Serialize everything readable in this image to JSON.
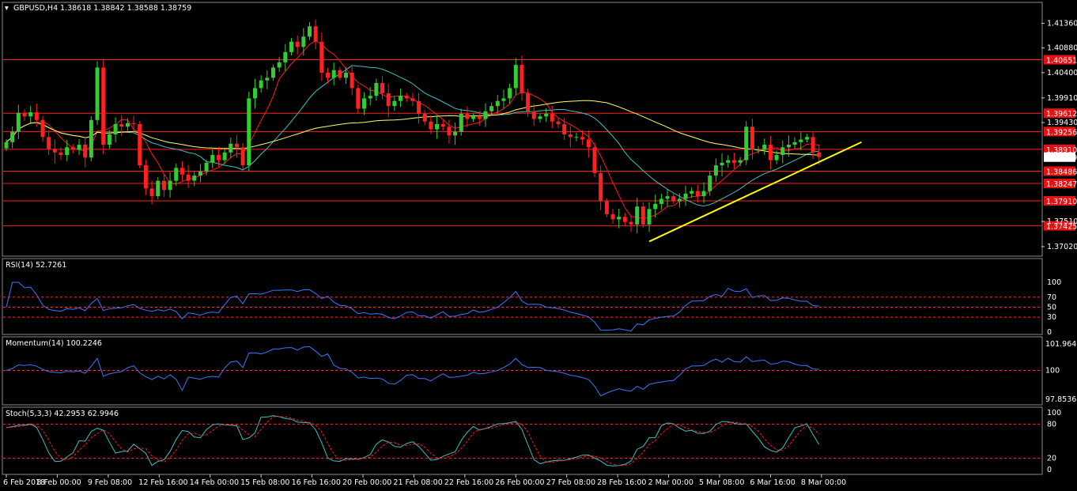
{
  "chart_data": {
    "type": "candlestick",
    "symbol": "GBPUSD,H4",
    "ohlc_label": "1.38618 1.38842 1.38588 1.38759",
    "price_axis": {
      "ylim": [
        1.3685,
        1.4175
      ],
      "ticks": [
        "1.41360",
        "1.40880",
        "1.40400",
        "1.39910",
        "1.39430",
        "1.37510",
        "1.37020"
      ]
    },
    "time_labels": [
      "6 Feb 2018",
      "8 Feb 00:00",
      "9 Feb 08:00",
      "12 Feb 16:00",
      "14 Feb 00:00",
      "15 Feb 08:00",
      "16 Feb 16:00",
      "20 Feb 00:00",
      "21 Feb 08:00",
      "22 Feb 16:00",
      "26 Feb 00:00",
      "27 Feb 08:00",
      "28 Feb 16:00",
      "2 Mar 00:00",
      "5 Mar 08:00",
      "6 Mar 16:00",
      "8 Mar 00:00"
    ],
    "closes": [
      1.3905,
      1.3925,
      1.3962,
      1.3955,
      1.3963,
      1.3948,
      1.3915,
      1.3892,
      1.3885,
      1.388,
      1.3895,
      1.389,
      1.39,
      1.3875,
      1.3948,
      1.405,
      1.39,
      1.392,
      1.394,
      1.3935,
      1.3942,
      1.394,
      1.386,
      1.3815,
      1.38,
      1.383,
      1.3812,
      1.383,
      1.3855,
      1.3842,
      1.383,
      1.384,
      1.3848,
      1.3865,
      1.388,
      1.387,
      1.3885,
      1.3902,
      1.3895,
      1.386,
      1.399,
      1.401,
      1.4025,
      1.403,
      1.405,
      1.406,
      1.408,
      1.41,
      1.409,
      1.411,
      1.413,
      1.41,
      1.404,
      1.403,
      1.4045,
      1.403,
      1.404,
      1.401,
      1.397,
      1.399,
      1.3995,
      1.402,
      1.4,
      1.3975,
      1.3985,
      1.3995,
      1.399,
      1.3985,
      1.396,
      1.3945,
      1.393,
      1.394,
      1.3935,
      1.3918,
      1.3925,
      1.396,
      1.395,
      1.3955,
      1.395,
      1.3965,
      1.3975,
      1.3985,
      1.399,
      1.401,
      1.4055,
      1.4,
      1.3965,
      1.395,
      1.3955,
      1.396,
      1.3945,
      1.394,
      1.392,
      1.3915,
      1.3915,
      1.391,
      1.3895,
      1.3845,
      1.379,
      1.3765,
      1.3755,
      1.376,
      1.375,
      1.3745,
      1.378,
      1.3745,
      1.3775,
      1.3785,
      1.3795,
      1.38,
      1.379,
      1.3795,
      1.3805,
      1.381,
      1.38,
      1.381,
      1.384,
      1.386,
      1.3865,
      1.387,
      1.3865,
      1.387,
      1.3935,
      1.389,
      1.389,
      1.39,
      1.387,
      1.388,
      1.3895,
      1.39,
      1.3905,
      1.391,
      1.3915,
      1.3885,
      1.3876
    ],
    "horizontal_levels": [
      {
        "label": "1.40651",
        "value": 1.40651
      },
      {
        "label": "1.39612",
        "value": 1.39612
      },
      {
        "label": "1.39256",
        "value": 1.39256
      },
      {
        "label": "1.38910",
        "value": 1.3891
      },
      {
        "label": "1.38486",
        "value": 1.38486
      },
      {
        "label": "1.38247",
        "value": 1.38247
      },
      {
        "label": "1.37910",
        "value": 1.3791
      },
      {
        "label": "1.37425",
        "value": 1.37425
      }
    ],
    "current_price": "1.38759",
    "trendline": {
      "from": [
        106,
        1.3712
      ],
      "to": [
        141,
        1.3905
      ]
    },
    "indicators": {
      "rsi": {
        "label": "RSI(14) 52.7261",
        "ticks": [
          "100",
          "70",
          "50",
          "30",
          "0"
        ],
        "levels": [
          70,
          50,
          30
        ]
      },
      "momentum": {
        "label": "Momentum(14) 100.2246",
        "ticks": [
          "101.9649",
          "100",
          "97.8536"
        ],
        "level": 100
      },
      "stoch": {
        "label": "Stoch(5,3,3) 42.2953 62.9946",
        "ticks": [
          "100",
          "80",
          "20",
          "0"
        ],
        "levels": [
          80,
          20
        ]
      }
    }
  },
  "colors": {
    "bull": "#32cd32",
    "bear": "#ff2020",
    "level": "#ff2020",
    "trendline": "#ffff00",
    "ma_fast": "#ff1a1a",
    "ma_mid": "#40c0c0",
    "ma_slow": "#ffff66",
    "indicator": "#3c78ff",
    "grid": "#ff3030",
    "price_label_bg": "#e81010"
  }
}
